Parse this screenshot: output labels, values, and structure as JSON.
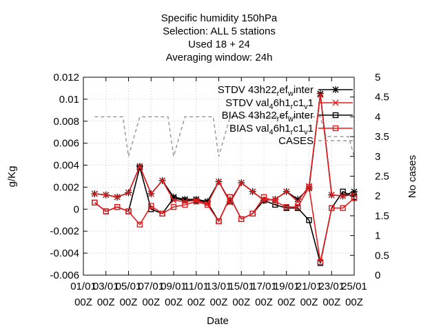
{
  "chart_data": {
    "type": "line",
    "title_lines": [
      "Specific humidity 150hPa",
      "Selection: ALL       5 stations",
      "Used  18  + 24",
      "Averaging window: 24h"
    ],
    "xlabel": "Date",
    "ylabel": "g/Kg",
    "y2label": "No cases",
    "x_start": 1,
    "x_end": 25,
    "ylim": [
      -0.006,
      0.012
    ],
    "y2lim": [
      0,
      5
    ],
    "y_ticks": [
      "-0.006",
      "-0.004",
      "-0.002",
      "0",
      "0.002",
      "0.004",
      "0.006",
      "0.008",
      "0.01",
      "0.012"
    ],
    "y2_ticks": [
      "0",
      "0.5",
      "1",
      "1.5",
      "2",
      "2.5",
      "3",
      "3.5",
      "4",
      "4.5",
      "5"
    ],
    "x_ticks": [
      {
        "day": 1,
        "line1": "01/01",
        "line2": "00Z"
      },
      {
        "day": 3,
        "line1": "03/01",
        "line2": "00Z"
      },
      {
        "day": 5,
        "line1": "05/01",
        "line2": "00Z"
      },
      {
        "day": 7,
        "line1": "07/01",
        "line2": "00Z"
      },
      {
        "day": 9,
        "line1": "09/01",
        "line2": "00Z"
      },
      {
        "day": 11,
        "line1": "11/01",
        "line2": "00Z"
      },
      {
        "day": 13,
        "line1": "13/01",
        "line2": "00Z"
      },
      {
        "day": 15,
        "line1": "15/01",
        "line2": "00Z"
      },
      {
        "day": 17,
        "line1": "17/01",
        "line2": "00Z"
      },
      {
        "day": 19,
        "line1": "19/01",
        "line2": "00Z"
      },
      {
        "day": 21,
        "line1": "21/01",
        "line2": "00Z"
      },
      {
        "day": 23,
        "line1": "23/01",
        "line2": "00Z"
      },
      {
        "day": 25,
        "line1": "25/01",
        "line2": "00Z"
      }
    ],
    "legend_position": "top-right",
    "series": [
      {
        "name_main": "STDV 43h22",
        "name_sub1": "r",
        "name_mid": "ef",
        "name_sub2": "w",
        "name_end": "inter",
        "color": "#000000",
        "marker": "star",
        "dashed": false,
        "axis": "y1",
        "x": [
          2,
          3,
          4,
          5,
          6,
          7,
          8,
          9,
          10,
          11,
          12,
          13,
          14,
          15,
          16,
          17,
          18,
          19,
          20,
          21,
          22,
          23,
          24,
          25
        ],
        "y": [
          0.0014,
          0.0013,
          0.0011,
          0.0015,
          0.0039,
          0.0014,
          0.0026,
          0.0011,
          0.0009,
          0.0009,
          0.0007,
          0.0025,
          0.0007,
          0.0024,
          0.0016,
          0.0008,
          0.0009,
          0.0016,
          0.0009,
          0.0019,
          0.0105,
          0.0013,
          0.0012,
          0.0016
        ]
      },
      {
        "name_main": "STDV val",
        "name_sub1": "4",
        "name_mid": "6h1",
        "name_sub2": "r",
        "name_end": "c1",
        "name_sub3": "v",
        "name_end2": "1",
        "color": "#e41a1c",
        "marker": "x",
        "dashed": false,
        "axis": "y1",
        "x": [
          2,
          3,
          4,
          5,
          6,
          7,
          8,
          9,
          10,
          11,
          12,
          13,
          14,
          15,
          16,
          17,
          18,
          19,
          20,
          21,
          22,
          23,
          24,
          25
        ],
        "y": [
          0.0014,
          0.0013,
          0.0011,
          0.0015,
          0.0039,
          0.0014,
          0.0026,
          0.0008,
          0.0007,
          0.0008,
          0.0005,
          0.0025,
          0.0006,
          0.0024,
          0.0016,
          0.0008,
          0.0009,
          0.0016,
          0.0007,
          0.0021,
          0.0104,
          0.0013,
          0.0012,
          0.0013
        ]
      },
      {
        "name_main": "BIAS 43h22",
        "name_sub1": "r",
        "name_mid": "ef",
        "name_sub2": "w",
        "name_end": "inter",
        "color": "#000000",
        "marker": "square",
        "dashed": false,
        "axis": "y1",
        "x": [
          2,
          3,
          4,
          5,
          6,
          7,
          8,
          9,
          10,
          11,
          12,
          13,
          14,
          15,
          16,
          17,
          18,
          19,
          20,
          21,
          22,
          23,
          24,
          25
        ],
        "y": [
          0.0006,
          -0.0002,
          0.0002,
          -0.0002,
          0.0038,
          0.0,
          -0.0004,
          0.001,
          0.0008,
          0.0008,
          0.0006,
          -0.0011,
          0.0011,
          -0.0009,
          -0.0004,
          0.0008,
          0.0004,
          0.0001,
          0.0001,
          -0.001,
          -0.0049,
          0.0001,
          0.0016,
          0.0011
        ]
      },
      {
        "name_main": "BIAS val",
        "name_sub1": "4",
        "name_mid": "6h1",
        "name_sub2": "r",
        "name_end": "c1",
        "name_sub3": "v",
        "name_end2": "1",
        "color": "#e41a1c",
        "marker": "square",
        "dashed": false,
        "axis": "y1",
        "x": [
          2,
          3,
          4,
          5,
          6,
          7,
          8,
          9,
          10,
          11,
          12,
          13,
          14,
          15,
          16,
          17,
          18,
          19,
          20,
          21,
          22,
          23,
          24,
          25
        ],
        "y": [
          0.0006,
          -0.0002,
          0.0002,
          -0.0002,
          -0.0014,
          0.0003,
          -0.0004,
          0.0002,
          0.0004,
          0.0007,
          0.0004,
          -0.0011,
          0.0011,
          -0.0009,
          -0.0004,
          0.0011,
          0.0007,
          0.0002,
          0.0002,
          0.002,
          -0.0048,
          0.0001,
          0.0001,
          0.001
        ]
      },
      {
        "name_main": "CASES",
        "color": "#999999",
        "marker": "none",
        "dashed": true,
        "axis": "y2",
        "x": [
          2,
          3,
          4,
          4.5,
          5,
          5.5,
          6,
          7,
          8,
          8.5,
          9,
          9.5,
          10,
          11,
          12,
          12.5,
          13,
          13.5,
          14,
          15,
          16,
          17,
          18,
          19,
          20,
          21,
          22,
          22.5,
          23,
          24,
          24.5,
          25
        ],
        "y": [
          4,
          4,
          4,
          4,
          3,
          3.5,
          4,
          4,
          4,
          4,
          3,
          3.5,
          4,
          4,
          4,
          4,
          3,
          3.5,
          4,
          4,
          4,
          4,
          4,
          4,
          4,
          4,
          4,
          3.5,
          3.5,
          3.5,
          3.5,
          3
        ]
      }
    ]
  }
}
